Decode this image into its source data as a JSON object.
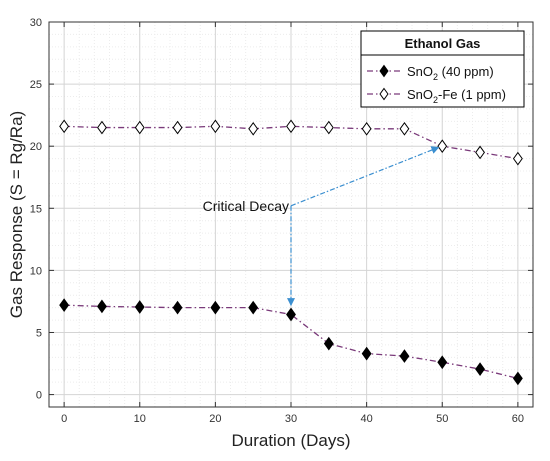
{
  "chart_data": {
    "type": "line",
    "xlabel": "Duration (Days)",
    "ylabel": "Gas Response (S = Rg/Ra)",
    "xlim": [
      -2,
      62
    ],
    "ylim": [
      -1,
      30
    ],
    "xticks": [
      0,
      10,
      20,
      30,
      40,
      50,
      60
    ],
    "yticks": [
      0,
      5,
      10,
      15,
      20,
      25,
      30
    ],
    "grid": true,
    "legend_position": "top-right",
    "legend_title": "Ethanol Gas",
    "series": [
      {
        "name": "SnO2 (40 ppm)",
        "name_main": "SnO",
        "name_sub": "2",
        "name_rest": " (40 ppm)",
        "marker": "filled-diamond",
        "color": "#000000",
        "line_color": "#7a3a7a",
        "x": [
          0,
          5,
          10,
          15,
          20,
          25,
          30,
          35,
          40,
          45,
          50,
          55,
          60
        ],
        "y": [
          7.2,
          7.1,
          7.05,
          7.0,
          7.0,
          7.0,
          6.45,
          4.1,
          3.3,
          3.1,
          2.6,
          2.05,
          1.3
        ]
      },
      {
        "name": "SnO2-Fe (1 ppm)",
        "name_main": "SnO",
        "name_sub": "2",
        "name_rest": "-Fe (1 ppm)",
        "marker": "open-diamond",
        "color": "#000000",
        "line_color": "#7a3a7a",
        "x": [
          0,
          5,
          10,
          15,
          20,
          25,
          30,
          35,
          40,
          45,
          50,
          55,
          60
        ],
        "y": [
          21.6,
          21.5,
          21.5,
          21.5,
          21.6,
          21.4,
          21.6,
          21.5,
          21.4,
          21.4,
          20.0,
          19.5,
          19.0
        ]
      }
    ],
    "annotations": [
      {
        "text": "Critical Decay",
        "color": "#3b8fd0",
        "arrows": [
          {
            "from": [
              30,
              15.2
            ],
            "to": [
              49.5,
              19.9
            ]
          },
          {
            "from": [
              30,
              15.2
            ],
            "to": [
              30,
              7.2
            ]
          }
        ]
      }
    ]
  }
}
